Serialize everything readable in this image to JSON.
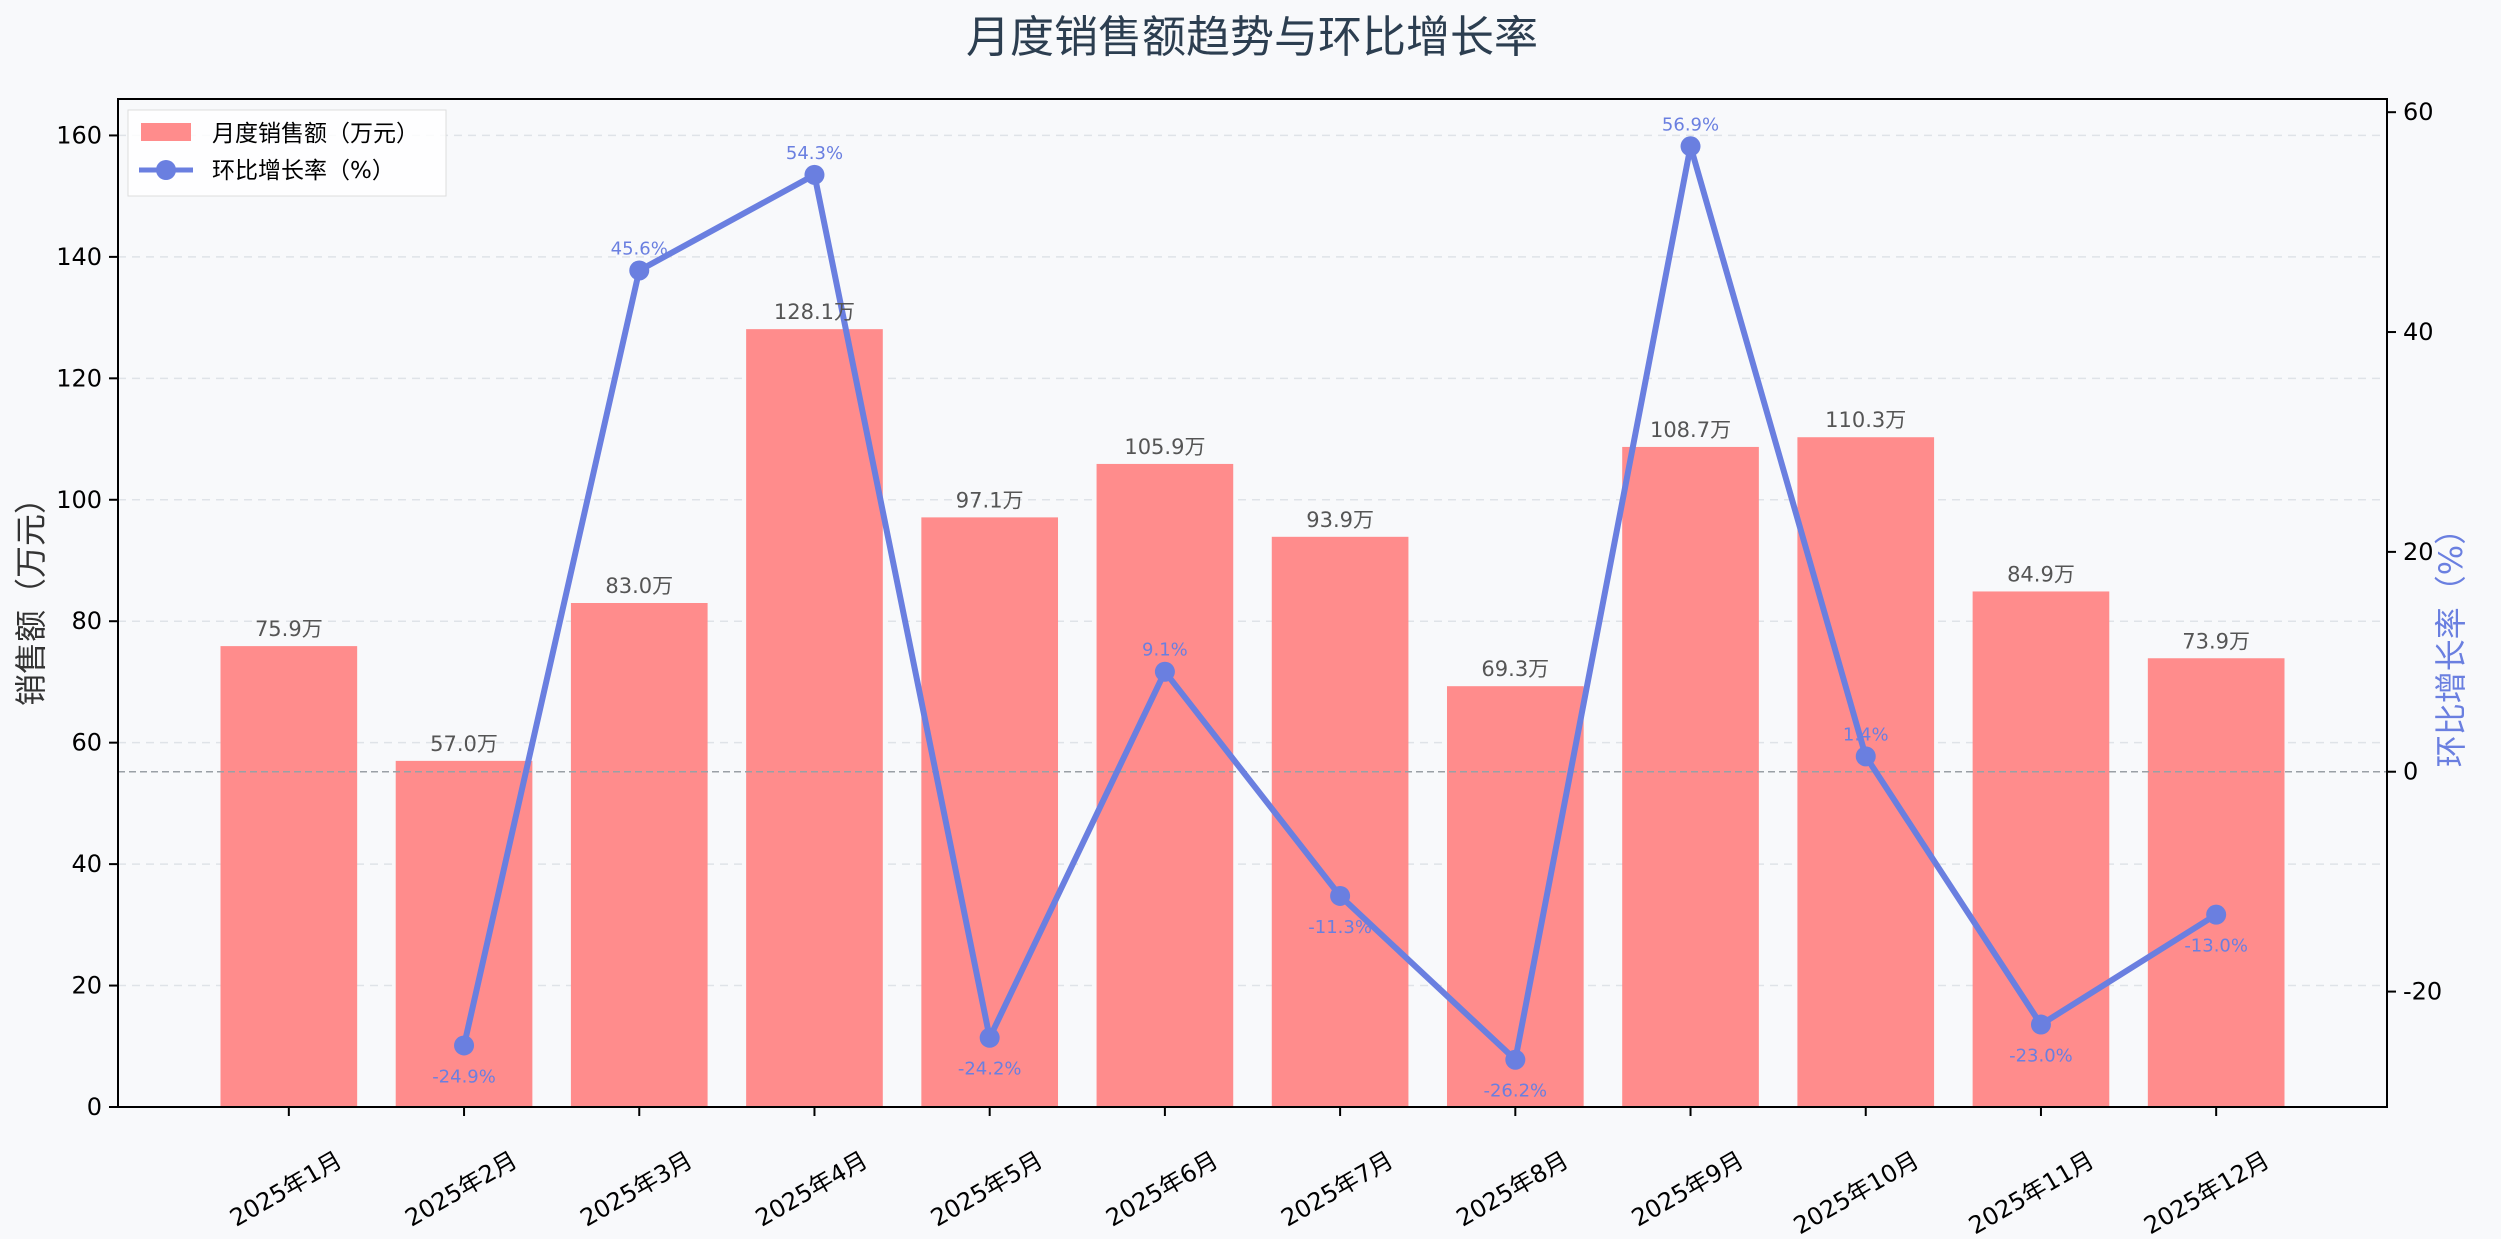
{
  "chart_data": {
    "type": "bar",
    "title": "月度销售额趋势与环比增长率",
    "xlabel": "",
    "ylabel": "销售额（万元）",
    "y2label": "环比增长率（%）",
    "ylim": [
      0,
      166
    ],
    "y2lim": [
      -30.5,
      61.2
    ],
    "yticks": [
      0,
      20,
      40,
      60,
      80,
      100,
      120,
      140,
      160
    ],
    "y2ticks": [
      -20,
      0,
      20,
      40,
      60
    ],
    "grid": true,
    "legend_position": "top-left",
    "categories": [
      "2025年1月",
      "2025年2月",
      "2025年3月",
      "2025年4月",
      "2025年5月",
      "2025年6月",
      "2025年7月",
      "2025年8月",
      "2025年9月",
      "2025年10月",
      "2025年11月",
      "2025年12月"
    ],
    "series": [
      {
        "name": "月度销售额（万元）",
        "type": "bar",
        "axis": "left",
        "color": "#ff8c8c",
        "values": [
          75.9,
          57.0,
          83.0,
          128.1,
          97.1,
          105.9,
          93.9,
          69.3,
          108.7,
          110.3,
          84.9,
          73.9
        ],
        "labels": [
          "75.9万",
          "57.0万",
          "83.0万",
          "128.1万",
          "97.1万",
          "105.9万",
          "93.9万",
          "69.3万",
          "108.7万",
          "110.3万",
          "84.9万",
          "73.9万"
        ]
      },
      {
        "name": "环比增长率（%）",
        "type": "line",
        "axis": "right",
        "color": "#6a7fe0",
        "values": [
          null,
          -24.9,
          45.6,
          54.3,
          -24.2,
          9.1,
          -11.3,
          -26.2,
          56.9,
          1.4,
          -23.0,
          -13.0
        ],
        "labels": [
          "",
          "-24.9%",
          "45.6%",
          "54.3%",
          "-24.2%",
          "9.1%",
          "-11.3%",
          "-26.2%",
          "56.9%",
          "1.4%",
          "-23.0%",
          "-13.0%"
        ]
      }
    ],
    "reference_line": {
      "axis": "right",
      "value": 0
    }
  }
}
